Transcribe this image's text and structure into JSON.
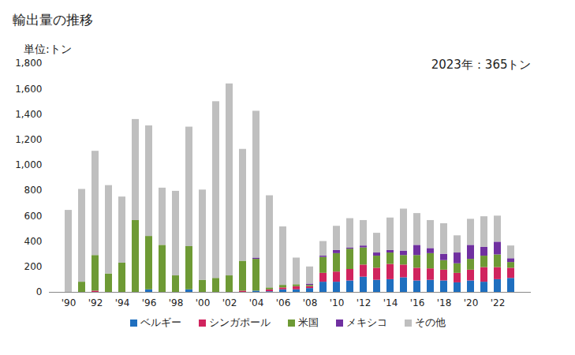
{
  "chart_data": {
    "type": "bar",
    "title": "輸出量の推移",
    "y_label": "単位:トン",
    "annotations": [
      "2023年：365トン"
    ],
    "stacked": true,
    "grid": false,
    "legend": "bottom",
    "categories": [
      "'90",
      null,
      "'92",
      null,
      "'94",
      null,
      "'96",
      null,
      "'98",
      null,
      "'00",
      null,
      "'02",
      null,
      "'04",
      null,
      "'06",
      null,
      "'08",
      null,
      "'10",
      null,
      "'12",
      null,
      "'14",
      null,
      "'16",
      null,
      "'18",
      null,
      "'20",
      null,
      "'22",
      null
    ],
    "ylim": [
      0,
      1800
    ],
    "yticks": [
      0,
      200,
      400,
      600,
      800,
      {
        "value": 1000,
        "label": "1,000"
      },
      {
        "value": 1200,
        "label": "1,200"
      },
      {
        "value": 1400,
        "label": "1,400"
      },
      {
        "value": 1600,
        "label": "1,600"
      },
      {
        "value": 1800,
        "label": "1,800"
      }
    ],
    "series": [
      {
        "name": "ベルギー",
        "color": "#1f6fbf",
        "values": [
          0,
          0,
          0,
          0,
          0,
          0,
          20,
          0,
          0,
          20,
          0,
          0,
          0,
          0,
          10,
          5,
          20,
          20,
          30,
          80,
          80,
          90,
          120,
          95,
          100,
          115,
          90,
          95,
          90,
          75,
          90,
          80,
          100,
          110
        ]
      },
      {
        "name": "シンガポール",
        "color": "#d0245e",
        "values": [
          0,
          0,
          10,
          0,
          0,
          0,
          0,
          0,
          0,
          0,
          0,
          0,
          0,
          10,
          0,
          15,
          15,
          25,
          15,
          70,
          80,
          90,
          95,
          95,
          120,
          100,
          100,
          90,
          85,
          75,
          85,
          115,
          95,
          80
        ]
      },
      {
        "name": "米国",
        "color": "#6e9a35",
        "values": [
          0,
          80,
          280,
          145,
          230,
          565,
          420,
          370,
          130,
          340,
          95,
          110,
          130,
          235,
          250,
          15,
          20,
          15,
          10,
          125,
          145,
          160,
          135,
          95,
          90,
          75,
          100,
          120,
          75,
          75,
          85,
          90,
          100,
          45
        ]
      },
      {
        "name": "メキシコ",
        "color": "#7030a0",
        "values": [
          0,
          0,
          0,
          0,
          0,
          0,
          0,
          0,
          0,
          0,
          0,
          0,
          0,
          0,
          10,
          0,
          0,
          0,
          10,
          10,
          25,
          10,
          15,
          25,
          20,
          35,
          80,
          40,
          50,
          85,
          110,
          70,
          100,
          30
        ]
      },
      {
        "name": "その他",
        "color": "#bfbfbf",
        "values": [
          645,
          730,
          820,
          695,
          520,
          795,
          870,
          450,
          665,
          940,
          710,
          1390,
          1510,
          880,
          1155,
          725,
          460,
          210,
          135,
          115,
          190,
          230,
          200,
          155,
          255,
          330,
          250,
          220,
          240,
          135,
          205,
          240,
          205,
          100
        ]
      }
    ]
  }
}
